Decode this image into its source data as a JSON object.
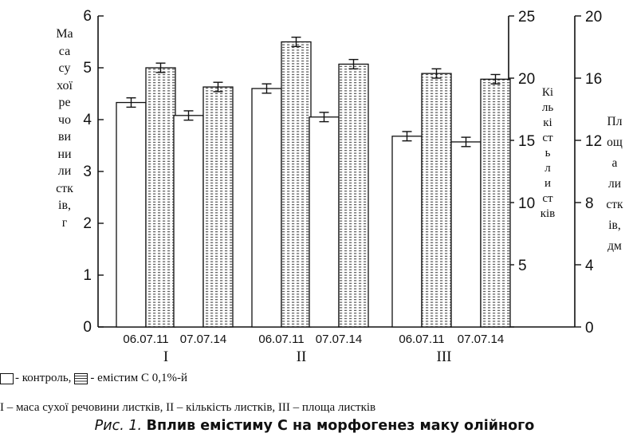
{
  "chart_data": {
    "type": "bar",
    "groups": [
      "I",
      "II",
      "III"
    ],
    "categories": [
      "06.07.11",
      "07.07.14",
      "06.07.11",
      "07.07.14",
      "06.07.11",
      "07.07.14"
    ],
    "series": [
      {
        "name": "контроль",
        "values": [
          4.33,
          4.08,
          4.6,
          4.05,
          3.68,
          3.57
        ]
      },
      {
        "name": "емістим С 0,1%-й",
        "values": [
          5.0,
          4.63,
          5.5,
          5.07,
          4.89,
          4.78
        ]
      }
    ],
    "error_bar": 0.09,
    "axes": {
      "left": {
        "label": [
          "Ма",
          "са",
          "су",
          "хої",
          "ре",
          "чо",
          "ви",
          "ни",
          "ли",
          "стк",
          "ів,",
          "г"
        ],
        "ticks": [
          "0",
          "1",
          "2",
          "3",
          "4",
          "5",
          "6"
        ],
        "range": [
          0,
          6
        ]
      },
      "right1": {
        "label": [
          "Кі",
          "ль",
          "кі",
          "ст",
          "ь",
          "л",
          "и",
          "ст",
          "ків"
        ],
        "ticks": [
          "5",
          "10",
          "15",
          "20",
          "25"
        ],
        "range": [
          0,
          25
        ]
      },
      "right2": {
        "label": [
          "Пл",
          "ощ",
          "а",
          "ли",
          "стк",
          "ів,",
          "дм"
        ],
        "ticks": [
          "0",
          "4",
          "8",
          "12",
          "16",
          "20"
        ],
        "range": [
          0,
          20
        ]
      }
    },
    "legend": {
      "control_text": "- контроль,",
      "treated_text": "- емістим С 0,1%-й"
    },
    "footnote": "І – маса сухої речовини листків, ІІ – кількість листків, ІІІ – площа листків",
    "caption": {
      "prefix": "Рис. 1.",
      "title": "Вплив емістиму С на морфогенез маку олійного"
    }
  },
  "colors": {
    "ink": "#111111",
    "hatch": "#333333",
    "bar_fill": "#ffffff"
  }
}
